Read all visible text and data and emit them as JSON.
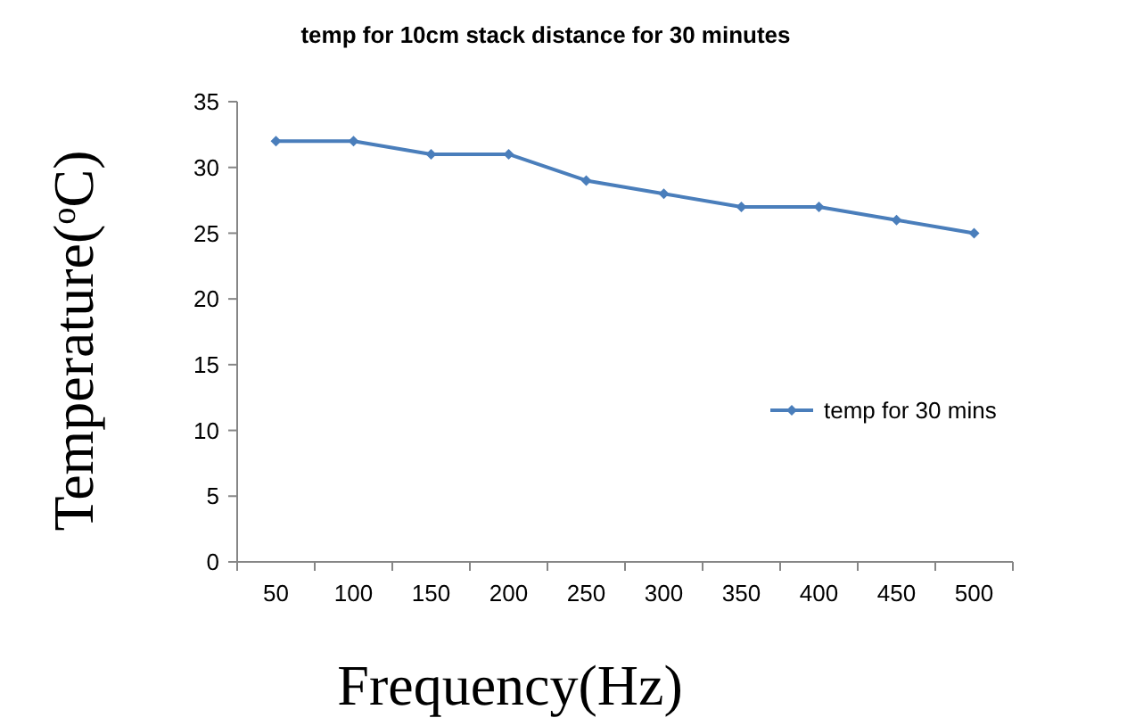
{
  "chart_data": {
    "type": "line",
    "title": "temp for 10cm stack distance for 30 minutes",
    "xlabel": "Frequency(Hz)",
    "ylabel": "Temperature($^{o}$C)",
    "categories": [
      "50",
      "100",
      "150",
      "200",
      "250",
      "300",
      "350",
      "400",
      "450",
      "500"
    ],
    "series": [
      {
        "name": "temp for 30 mins",
        "color": "#4a7ebb",
        "values": [
          32,
          32,
          31,
          31,
          29,
          28,
          27,
          27,
          26,
          25
        ]
      }
    ],
    "ylim": [
      0,
      35
    ],
    "yticks": [
      0,
      5,
      10,
      15,
      20,
      25,
      30,
      35
    ],
    "grid": false,
    "legend": "right",
    "marker": "diamond",
    "line_style": "solid"
  }
}
